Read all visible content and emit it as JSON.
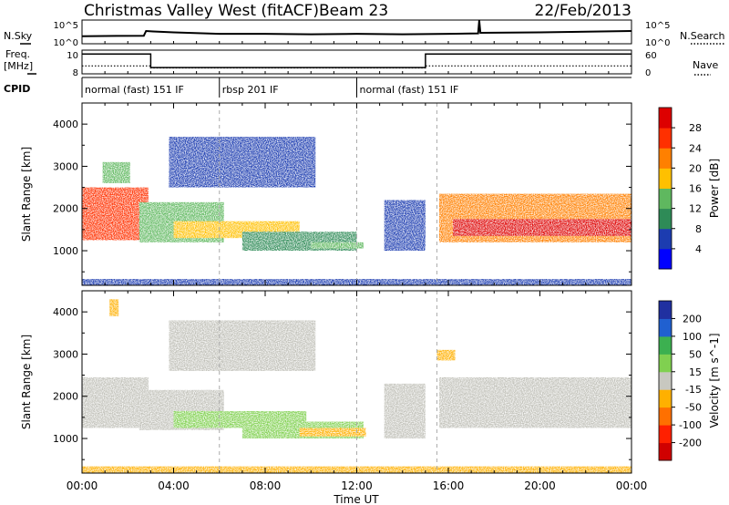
{
  "header": {
    "station": "Christmas Valley West (fitACF)",
    "beam": "Beam 23",
    "date": "22/Feb/2013"
  },
  "strip_labels": {
    "nsky": "N.Sky",
    "nsearch": "N.Search",
    "freq_line1": "Freq.",
    "freq_line2": "[MHz]",
    "nave": "Nave",
    "cpid": "CPID"
  },
  "colors": {
    "power_scale": [
      "#0000ff",
      "#1c3cb0",
      "#2e8b57",
      "#5fb85f",
      "#ffc000",
      "#ff8000",
      "#ff3000",
      "#dd0000"
    ],
    "velocity_scale": [
      "#2030a0",
      "#2060d0",
      "#3cb050",
      "#80d050",
      "#c8c8c0",
      "#ffb000",
      "#ff7000",
      "#ff2000",
      "#d00000"
    ],
    "ground_scatter": "#c0c0b8"
  },
  "chart_data": [
    {
      "type": "line",
      "name": "nsky-nsearch-strip",
      "ylabel_left": "N.Sky",
      "ylabel_right": "N.Search",
      "left_ticks": [
        "10^5",
        "10^0"
      ],
      "right_ticks": [
        "10^5",
        "10^0"
      ],
      "x_range_hours": [
        0,
        24
      ],
      "x": [
        0,
        2.7,
        2.8,
        3.1,
        4.0,
        6.0,
        8.0,
        10.0,
        12.0,
        14.0,
        16.0,
        17.3,
        17.35,
        17.4,
        20.0,
        24.0
      ],
      "y_log10": [
        1.6,
        1.7,
        2.7,
        2.6,
        2.4,
        2.1,
        2.1,
        2.0,
        2.1,
        2.0,
        2.1,
        2.2,
        4.9,
        2.3,
        2.4,
        2.7
      ]
    },
    {
      "type": "line",
      "name": "freq-nave-strip",
      "ylabel_left": "Freq. [MHz]",
      "ylabel_right": "Nave",
      "left_ticks": [
        "10",
        "8"
      ],
      "right_ticks": [
        "60",
        "0"
      ],
      "freq_x": [
        0,
        3,
        3,
        15,
        15,
        24
      ],
      "freq_y": [
        10.5,
        10.5,
        8.8,
        8.8,
        10.5,
        10.5
      ],
      "nave_x": [
        0,
        3,
        3,
        15,
        15,
        24
      ],
      "nave_y": [
        20,
        20,
        15,
        15,
        20,
        20
      ]
    },
    {
      "type": "table",
      "name": "cpid-segments",
      "segments": [
        {
          "start": 0,
          "end": 6,
          "label": "normal (fast) 151 IF"
        },
        {
          "start": 6,
          "end": 12,
          "label": "rbsp 201 IF"
        },
        {
          "start": 12,
          "end": 24,
          "label": "normal (fast) 151 IF"
        }
      ]
    },
    {
      "type": "heatmap",
      "name": "power",
      "ylabel": "Slant Range [km]",
      "xlabel": "Time UT",
      "x_ticks": [
        "00:00",
        "04:00",
        "08:00",
        "12:00",
        "16:00",
        "20:00",
        "00:00"
      ],
      "y_ticks": [
        1000,
        2000,
        3000,
        4000
      ],
      "ylim": [
        180,
        4500
      ],
      "xlim_hours": [
        0,
        24
      ],
      "colorbar_label": "Power [dB]",
      "colorbar_ticks": [
        "28",
        "24",
        "20",
        "16",
        "12",
        "8",
        "4"
      ],
      "regions": [
        {
          "t0": 0.0,
          "t1": 2.9,
          "r0": 1250,
          "r1": 2500,
          "level": 6
        },
        {
          "t0": 0.9,
          "t1": 2.1,
          "r0": 2600,
          "r1": 3100,
          "level": 3
        },
        {
          "t0": 2.5,
          "t1": 6.2,
          "r0": 1200,
          "r1": 2150,
          "level": 3
        },
        {
          "t0": 4.0,
          "t1": 9.5,
          "r0": 1300,
          "r1": 1700,
          "level": 4
        },
        {
          "t0": 3.8,
          "t1": 10.2,
          "r0": 2500,
          "r1": 3700,
          "level": 1
        },
        {
          "t0": 7.0,
          "t1": 12.0,
          "r0": 1000,
          "r1": 1450,
          "level": 2
        },
        {
          "t0": 10.0,
          "t1": 12.3,
          "r0": 1050,
          "r1": 1200,
          "level": 3
        },
        {
          "t0": 13.2,
          "t1": 15.0,
          "r0": 1000,
          "r1": 2200,
          "level": 1
        },
        {
          "t0": 15.6,
          "t1": 24.0,
          "r0": 1200,
          "r1": 2350,
          "level": 5
        },
        {
          "t0": 16.2,
          "t1": 24.0,
          "r0": 1350,
          "r1": 1750,
          "level": 7
        },
        {
          "t0": 0.0,
          "t1": 24.0,
          "r0": 190,
          "r1": 330,
          "level": 1
        }
      ]
    },
    {
      "type": "heatmap",
      "name": "velocity",
      "ylabel": "Slant Range [km]",
      "xlabel": "Time UT",
      "x_ticks": [
        "00:00",
        "04:00",
        "08:00",
        "12:00",
        "16:00",
        "20:00",
        "00:00"
      ],
      "y_ticks": [
        1000,
        2000,
        3000,
        4000
      ],
      "ylim": [
        180,
        4500
      ],
      "xlim_hours": [
        0,
        24
      ],
      "colorbar_label": "Velocity [m s^-1]",
      "colorbar_ticks": [
        "200",
        "100",
        "50",
        "15",
        "-15",
        "-50",
        "-100",
        "-200"
      ],
      "regions": [
        {
          "t0": 0.0,
          "t1": 2.9,
          "r0": 1250,
          "r1": 2450,
          "cls": "gs"
        },
        {
          "t0": 2.5,
          "t1": 6.2,
          "r0": 1200,
          "r1": 2150,
          "cls": "gs"
        },
        {
          "t0": 4.0,
          "t1": 9.8,
          "r0": 1250,
          "r1": 1650,
          "cls": "pos"
        },
        {
          "t0": 7.0,
          "t1": 12.3,
          "r0": 1000,
          "r1": 1400,
          "cls": "pos"
        },
        {
          "t0": 9.5,
          "t1": 12.4,
          "r0": 1050,
          "r1": 1250,
          "cls": "neg"
        },
        {
          "t0": 3.8,
          "t1": 10.2,
          "r0": 2600,
          "r1": 3800,
          "cls": "gs"
        },
        {
          "t0": 13.2,
          "t1": 15.0,
          "r0": 1000,
          "r1": 2300,
          "cls": "gs"
        },
        {
          "t0": 15.6,
          "t1": 24.0,
          "r0": 1250,
          "r1": 2450,
          "cls": "gs"
        },
        {
          "t0": 1.2,
          "t1": 1.6,
          "r0": 3900,
          "r1": 4300,
          "cls": "neg"
        },
        {
          "t0": 15.5,
          "t1": 16.3,
          "r0": 2850,
          "r1": 3100,
          "cls": "neg"
        },
        {
          "t0": 0.0,
          "t1": 24.0,
          "r0": 190,
          "r1": 340,
          "cls": "neg"
        }
      ]
    }
  ]
}
